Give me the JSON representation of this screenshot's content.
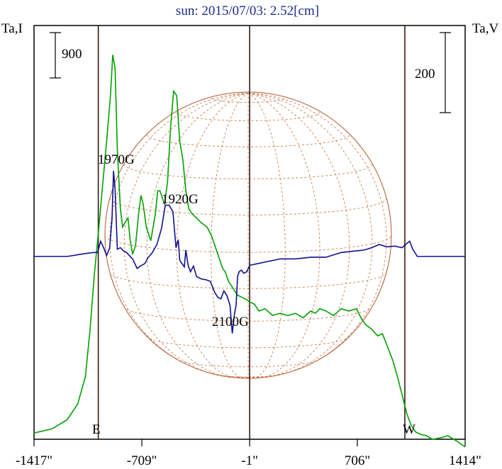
{
  "title": "sun: 2015/07/03: 2.52[cm]",
  "chart_data": {
    "type": "line",
    "title": "sun: 2015/07/03: 2.52[cm]",
    "y_left_label": "Ta,I",
    "y_right_label": "Ta,V",
    "xlim": [
      -1417,
      1414
    ],
    "x_ticks": [
      {
        "value": -1417,
        "label": "-1417\""
      },
      {
        "value": -709,
        "label": "-709\""
      },
      {
        "value": -1,
        "label": "-1\""
      },
      {
        "value": 706,
        "label": "706\""
      },
      {
        "value": 1414,
        "label": "1414\""
      }
    ],
    "scale_bars": [
      {
        "axis": "I",
        "label": "900",
        "value": 900
      },
      {
        "axis": "V",
        "label": "200",
        "value": 200
      }
    ],
    "limb_markers": [
      {
        "label": "E",
        "x": -995
      },
      {
        "label": "W",
        "x": 1018
      }
    ],
    "center_marker_x": -1,
    "annotations": [
      {
        "text": "1970G",
        "x": -900
      },
      {
        "text": "1920G",
        "x": -470
      },
      {
        "text": "2100G",
        "x": -100
      }
    ],
    "grid": "solar disk grid",
    "series": [
      {
        "name": "I",
        "color": "#00a000",
        "units": "relative to scale bar (900)",
        "x": [
          -1417,
          -1300,
          -1200,
          -1130,
          -1080,
          -1050,
          -1020,
          -995,
          -970,
          -940,
          -915,
          -900,
          -885,
          -870,
          -850,
          -835,
          -820,
          -800,
          -785,
          -770,
          -750,
          -730,
          -715,
          -700,
          -680,
          -650,
          -620,
          -605,
          -590,
          -560,
          -540,
          -520,
          -500,
          -480,
          -460,
          -440,
          -420,
          -400,
          -380,
          -350,
          -320,
          -280,
          -250,
          -220,
          -200,
          -180,
          -160,
          -140,
          -120,
          -100,
          -80,
          -50,
          -20,
          0,
          30,
          60,
          100,
          150,
          200,
          250,
          300,
          350,
          400,
          430,
          460,
          500,
          550,
          600,
          650,
          700,
          730,
          760,
          800,
          840,
          870,
          900,
          940,
          970,
          1000,
          1030,
          1060,
          1090,
          1120,
          1160,
          1200,
          1260,
          1300,
          1350,
          1414
        ],
        "y": [
          0.06,
          0.15,
          0.35,
          0.7,
          1.3,
          2.3,
          3.6,
          4.45,
          5.4,
          6.5,
          7.5,
          8.4,
          8.1,
          6.3,
          5.0,
          4.6,
          4.7,
          4.8,
          4.3,
          4.0,
          4.2,
          4.9,
          5.3,
          5.1,
          4.6,
          4.3,
          4.9,
          5.4,
          5.4,
          5.1,
          5.6,
          6.8,
          7.6,
          7.5,
          6.5,
          6.1,
          5.4,
          5.0,
          4.9,
          4.8,
          4.7,
          4.6,
          4.4,
          4.1,
          3.9,
          3.7,
          3.6,
          3.4,
          3.3,
          3.2,
          3.1,
          3.05,
          3.0,
          2.95,
          2.9,
          2.75,
          2.8,
          2.65,
          2.7,
          2.65,
          2.7,
          2.6,
          2.75,
          2.7,
          2.8,
          2.75,
          2.65,
          2.8,
          2.75,
          2.8,
          2.6,
          2.45,
          2.35,
          2.2,
          2.25,
          2.0,
          1.65,
          1.3,
          0.9,
          0.5,
          0.22,
          0.08,
          0.03,
          0.0,
          -0.08,
          -0.04,
          -0.0,
          -0.1,
          -0.25
        ]
      },
      {
        "name": "V",
        "color": "#101090",
        "units": "relative to scale bar (200)",
        "x": [
          -1417,
          -1200,
          -1100,
          -1030,
          -1000,
          -980,
          -960,
          -940,
          -920,
          -905,
          -895,
          -885,
          -870,
          -850,
          -830,
          -810,
          -790,
          -770,
          -740,
          -710,
          -690,
          -670,
          -640,
          -610,
          -580,
          -555,
          -530,
          -505,
          -485,
          -470,
          -460,
          -445,
          -430,
          -420,
          -405,
          -390,
          -370,
          -350,
          -320,
          -290,
          -260,
          -230,
          -210,
          -190,
          -170,
          -150,
          -130,
          -115,
          -100,
          -90,
          -80,
          -70,
          -55,
          -40,
          -20,
          0,
          50,
          100,
          200,
          300,
          400,
          500,
          600,
          700,
          750,
          800,
          850,
          900,
          950,
          1000,
          1030,
          1050,
          1070,
          1100,
          1200,
          1414
        ],
        "y": [
          0.0,
          0.0,
          0.03,
          0.05,
          0.05,
          0.19,
          0.11,
          0.01,
          0.11,
          0.47,
          1.07,
          0.84,
          0.09,
          0.11,
          0.07,
          0.05,
          0.01,
          -0.03,
          -0.15,
          -0.11,
          -0.09,
          -0.02,
          0.05,
          0.15,
          0.35,
          0.64,
          0.64,
          0.56,
          0.11,
          0.21,
          -0.05,
          -0.09,
          -0.13,
          0.08,
          -0.11,
          -0.19,
          -0.12,
          -0.25,
          -0.28,
          -0.29,
          -0.31,
          -0.45,
          -0.51,
          -0.53,
          -0.43,
          -0.49,
          -0.61,
          -0.96,
          -0.71,
          -0.61,
          -0.25,
          -0.19,
          -0.17,
          -0.21,
          -0.19,
          -0.11,
          -0.09,
          -0.07,
          -0.03,
          -0.03,
          -0.01,
          -0.01,
          0.05,
          0.07,
          0.08,
          0.11,
          0.15,
          0.12,
          0.13,
          0.11,
          0.16,
          0.19,
          0.09,
          0.0,
          0.0,
          0.0
        ]
      }
    ]
  }
}
